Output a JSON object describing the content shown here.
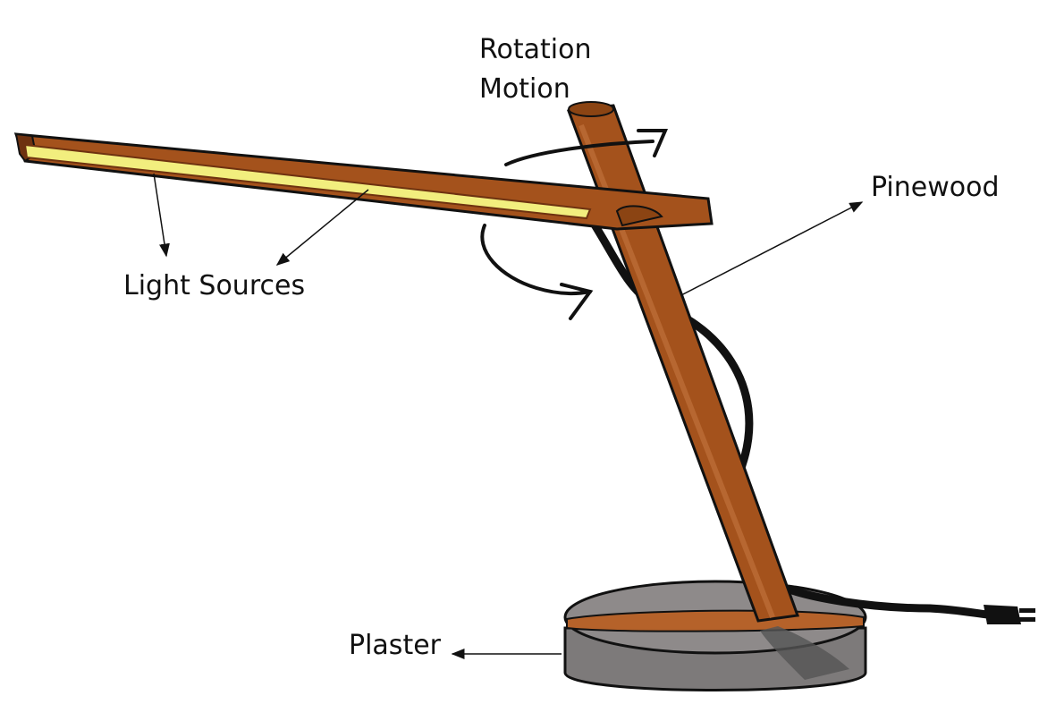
{
  "labels": {
    "rotation": [
      "Rotation",
      "Motion"
    ],
    "pinewood": "Pinewood",
    "light_sources": "Light Sources",
    "plaster": "Plaster"
  },
  "colors": {
    "wood": "#a4521c",
    "wood_dark": "#6e3210",
    "wood_light": "#c0713a",
    "light_strip": "#f2ee7e",
    "plaster_top": "#8e8a8a",
    "plaster_side": "#7d7a7a",
    "cord": "#111111",
    "ink": "#111111"
  }
}
